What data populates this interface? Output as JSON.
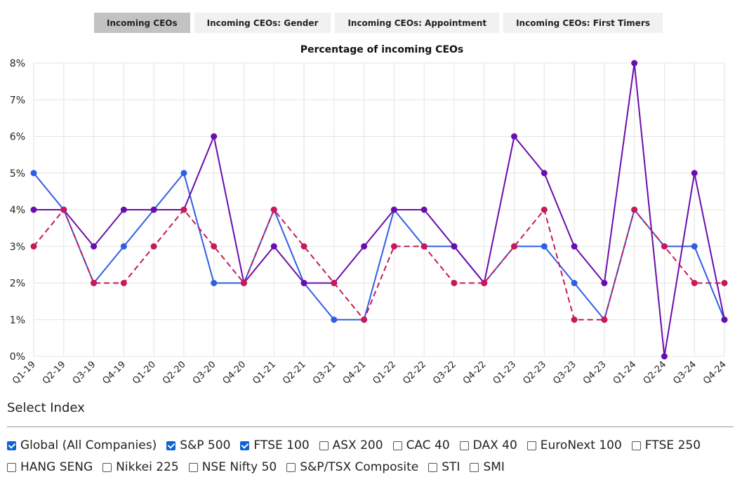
{
  "tabs": [
    {
      "label": "Incoming CEOs",
      "active": true
    },
    {
      "label": "Incoming CEOs: Gender",
      "active": false
    },
    {
      "label": "Incoming CEOs: Appointment",
      "active": false
    },
    {
      "label": "Incoming CEOs: First Timers",
      "active": false
    }
  ],
  "chart_data": {
    "type": "line",
    "title": "Percentage of incoming CEOs",
    "xlabel": "",
    "ylabel": "",
    "ylim": [
      0,
      8
    ],
    "y_ticks": [
      "0%",
      "1%",
      "2%",
      "3%",
      "4%",
      "5%",
      "6%",
      "7%",
      "8%"
    ],
    "grid": true,
    "categories": [
      "Q1-19",
      "Q2-19",
      "Q3-19",
      "Q4-19",
      "Q1-20",
      "Q2-20",
      "Q3-20",
      "Q4-20",
      "Q1-21",
      "Q2-21",
      "Q3-21",
      "Q4-21",
      "Q1-22",
      "Q2-22",
      "Q3-22",
      "Q4-22",
      "Q1-23",
      "Q2-23",
      "Q3-23",
      "Q4-23",
      "Q1-24",
      "Q2-24",
      "Q3-24",
      "Q4-24"
    ],
    "series": [
      {
        "color": "#2f5ee3",
        "dash": false,
        "values": [
          5,
          4,
          2,
          3,
          4,
          5,
          2,
          2,
          4,
          2,
          1,
          1,
          4,
          3,
          3,
          2,
          3,
          3,
          2,
          1,
          4,
          3,
          3,
          1
        ]
      },
      {
        "color": "#6a0dad",
        "dash": false,
        "values": [
          4,
          4,
          3,
          4,
          4,
          4,
          6,
          2,
          3,
          2,
          2,
          3,
          4,
          4,
          3,
          2,
          6,
          5,
          3,
          2,
          8,
          0,
          5,
          1
        ]
      },
      {
        "color": "#c8185a",
        "dash": true,
        "values": [
          3,
          4,
          2,
          2,
          3,
          4,
          3,
          2,
          4,
          3,
          2,
          1,
          3,
          3,
          2,
          2,
          3,
          4,
          1,
          1,
          4,
          3,
          2,
          2
        ]
      }
    ]
  },
  "index_select": {
    "title": "Select Index",
    "options": [
      {
        "label": "Global (All Companies)",
        "checked": true
      },
      {
        "label": "S&P 500",
        "checked": true
      },
      {
        "label": "FTSE 100",
        "checked": true
      },
      {
        "label": "ASX 200",
        "checked": false
      },
      {
        "label": "CAC 40",
        "checked": false
      },
      {
        "label": "DAX 40",
        "checked": false
      },
      {
        "label": "EuroNext 100",
        "checked": false
      },
      {
        "label": "FTSE 250",
        "checked": false
      },
      {
        "label": "HANG SENG",
        "checked": false
      },
      {
        "label": "Nikkei 225",
        "checked": false
      },
      {
        "label": "NSE Nifty 50",
        "checked": false
      },
      {
        "label": "S&P/TSX Composite",
        "checked": false
      },
      {
        "label": "STI",
        "checked": false
      },
      {
        "label": "SMI",
        "checked": false
      }
    ]
  }
}
